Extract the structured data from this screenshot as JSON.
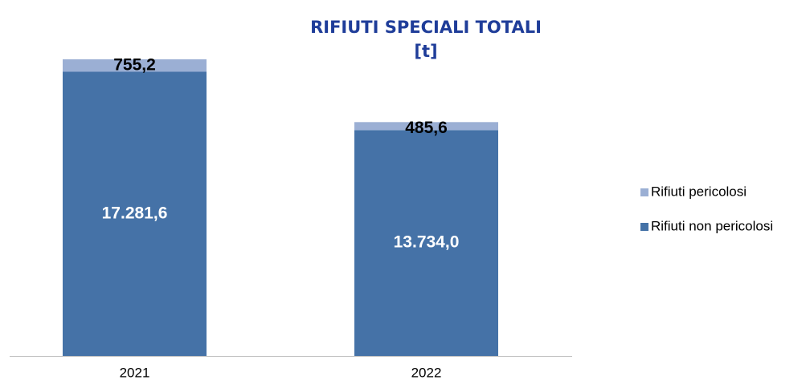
{
  "chart_data": {
    "type": "stacked_bar",
    "title": "RIFIUTI SPECIALI TOTALI",
    "subtitle": "[t]",
    "categories": [
      "2021",
      "2022"
    ],
    "series": [
      {
        "name": "Rifiuti non pericolosi",
        "color": "#4572a7",
        "values": [
          17281.6,
          13734.0
        ],
        "value_labels": [
          "17.281,6",
          "13.734,0"
        ]
      },
      {
        "name": "Rifiuti pericolosi",
        "color": "#9bafd4",
        "values": [
          755.2,
          485.6
        ],
        "value_labels": [
          "755,2",
          "485,6"
        ]
      }
    ],
    "legend": "right"
  }
}
